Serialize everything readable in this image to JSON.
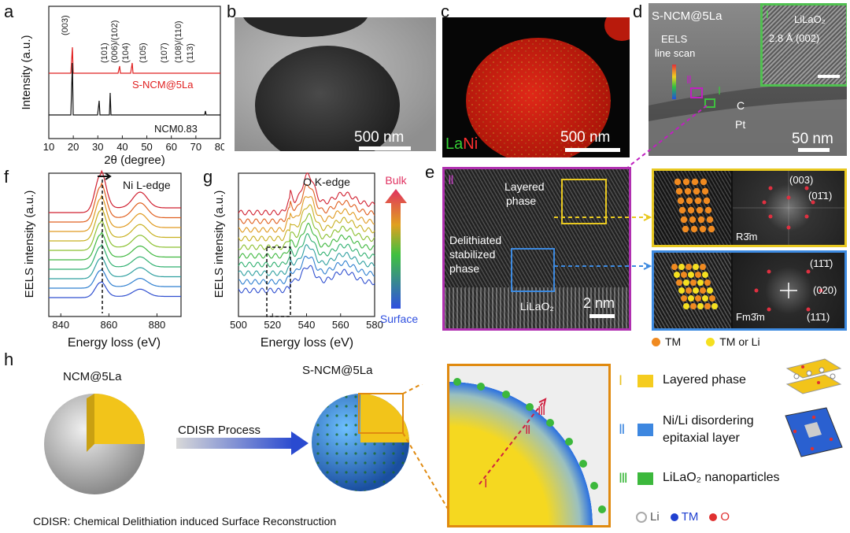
{
  "panels": {
    "a": {
      "label": "a",
      "ylabel": "Intensity (a.u.)",
      "xlabel": "2θ (degree)",
      "peaks": [
        "(003)",
        "(101)",
        "(006)/(102)",
        "(104)",
        "(105)",
        "(107)",
        "(108)/(110)",
        "(113)"
      ],
      "series": [
        {
          "name": "S-NCM@5La",
          "color": "#e02020"
        },
        {
          "name": "NCM0.83",
          "color": "#111111"
        }
      ],
      "chart_data": {
        "type": "line",
        "title": "",
        "xlabel": "2θ (degree)",
        "ylabel": "Intensity (a.u.)",
        "xlim": [
          10,
          80
        ],
        "xticks": [
          10,
          20,
          30,
          40,
          50,
          60,
          70,
          80
        ],
        "peak_positions": [
          18.7,
          36.6,
          38.2,
          44.4,
          48.6,
          58.5,
          64.4,
          68.0
        ],
        "series_names": [
          "S-NCM@5La",
          "NCM0.83"
        ]
      }
    },
    "b": {
      "label": "b",
      "scalebar": "500 nm"
    },
    "c": {
      "label": "c",
      "scalebar": "500 nm",
      "legend_la": "La",
      "legend_ni": "Ni"
    },
    "d": {
      "label": "d",
      "sample": "S-NCM@5La",
      "eels1": "EELS",
      "eels2": "line scan",
      "roman_2": "Ⅱ",
      "roman_1": "Ⅰ",
      "c_label": "C",
      "pt_label": "Pt",
      "scalebar": "50 nm",
      "inset_roman": "Ⅰ",
      "inset_title": "LiLaO₂",
      "inset_spacing": "2.8 Å (002)"
    },
    "e": {
      "label": "e",
      "roman": "Ⅱ",
      "layered1": "Layered",
      "layered2": "phase",
      "delith1": "Delithiated",
      "delith2": "stabilized",
      "delith3": "phase",
      "lilao2": "LiLaO₂",
      "scalebar": "2 nm",
      "fft_top": [
        "(003)",
        "(01̄1)",
        "R3̄m"
      ],
      "fft_bottom": [
        "(11̄1̄)",
        "(020)",
        "(11̄1)",
        "Fm3̄m"
      ],
      "legend_tm": "TM",
      "legend_tmli": "TM or Li"
    },
    "f": {
      "label": "f",
      "title": "Ni L-edge",
      "ylabel": "EELS intensity (a.u.)",
      "xlabel": "Energy loss (eV)",
      "chart_data": {
        "type": "line",
        "xlabel": "Energy loss (eV)",
        "ylabel": "EELS intensity (a.u.)",
        "xlim": [
          835,
          890
        ],
        "xticks": [
          840,
          860,
          880
        ],
        "peaks": [
          856.5,
          873
        ],
        "n_spectra": 10
      }
    },
    "g": {
      "label": "g",
      "title": "O K-edge",
      "ylabel": "EELS intensity (a.u.)",
      "xlabel": "Energy loss (eV)",
      "chart_data": {
        "type": "line",
        "xlabel": "Energy loss (eV)",
        "ylabel": "EELS intensity (a.u.)",
        "xlim": [
          500,
          580
        ],
        "xticks": [
          500,
          520,
          540,
          560,
          580
        ],
        "peaks": [
          530,
          541,
          562
        ],
        "n_spectra": 10
      }
    },
    "colorbar": {
      "top": "Bulk",
      "bottom": "Surface"
    },
    "h": {
      "label": "h",
      "left_title": "NCM@5La",
      "right_title": "S-NCM@5La",
      "process": "CDISR Process",
      "footnote": "CDISR: Chemical Delithiation induced Surface Reconstruction",
      "zoom_labels": [
        "Ⅰ",
        "Ⅱ",
        "Ⅲ"
      ],
      "legend": [
        {
          "roman": "Ⅰ",
          "line1": "Layered phase",
          "line2": "",
          "color": "#f5cc1f"
        },
        {
          "roman": "Ⅱ",
          "line1": "Ni/Li disordering",
          "line2": "epitaxial layer",
          "color": "#3d87e0"
        },
        {
          "roman": "Ⅲ",
          "line1": "LiLaO₂ nanoparticles",
          "line2": "",
          "color": "#3cb83c"
        }
      ],
      "atoms": [
        "Li",
        "TM",
        "O"
      ]
    }
  }
}
